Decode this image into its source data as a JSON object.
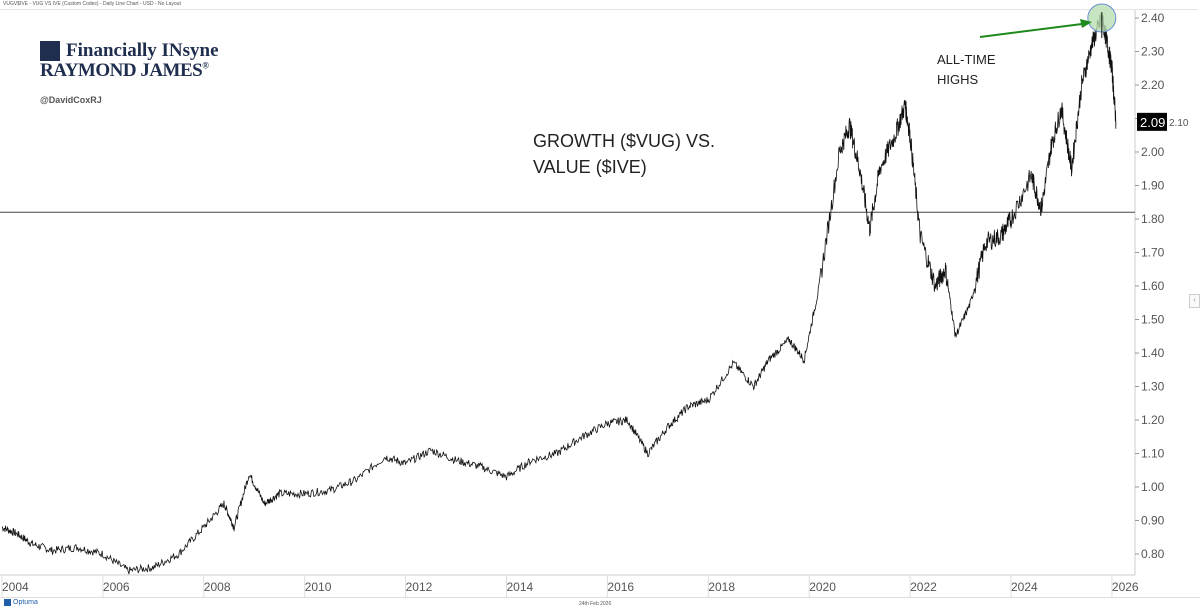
{
  "header": {
    "text": "VUGV$IVE - VUG VS IVE (Custom Codes) - Daily Line Chart - USD - No Layout"
  },
  "branding": {
    "line1": "Financially INsyne",
    "line2": "RAYMOND JAMES",
    "registered": "®",
    "handle": "@DavidCoxRJ"
  },
  "footer": {
    "provider": "Optuma",
    "date": "24th Feb 2026"
  },
  "colors": {
    "line": "#111111",
    "arrow": "#1e8a1e",
    "highlight_fill": "#b9dfb0",
    "highlight_stroke": "#6b8fd6",
    "last_value_bg": "#000000",
    "reference_line": "#444444"
  },
  "chart_data": {
    "type": "line",
    "title": "GROWTH ($VUG) VS. VALUE ($IVE)",
    "annotation": "ALL-TIME HIGHS",
    "xlim": [
      2004,
      2026
    ],
    "ylim": [
      0.75,
      2.42
    ],
    "x_ticks": [
      "2004",
      "2006",
      "2008",
      "2010",
      "2012",
      "2014",
      "2016",
      "2018",
      "2020",
      "2022",
      "2024",
      "2026"
    ],
    "y_ticks": [
      "0.80",
      "0.90",
      "1.00",
      "1.10",
      "1.20",
      "1.30",
      "1.40",
      "1.50",
      "1.60",
      "1.70",
      "1.80",
      "1.90",
      "2.00",
      "2.10",
      "2.20",
      "2.30",
      "2.40"
    ],
    "y_axis_side": "right",
    "grid": false,
    "last_value": "2.09",
    "reference_line": 1.82,
    "series": [
      {
        "x": [
          2004.0,
          2004.3,
          2004.6,
          2005.0,
          2005.5,
          2006.0,
          2006.5,
          2007.0,
          2007.5,
          2008.0,
          2008.4,
          2008.6,
          2008.9,
          2009.2,
          2009.5,
          2010.0,
          2010.5,
          2011.0,
          2011.6,
          2012.0,
          2012.5,
          2013.0,
          2013.5,
          2014.0,
          2014.5,
          2015.0,
          2015.5,
          2016.0,
          2016.4,
          2016.8,
          2017.2,
          2017.6,
          2018.0,
          2018.5,
          2018.9,
          2019.2,
          2019.6,
          2019.9,
          2020.2,
          2020.6,
          2020.8,
          2021.0,
          2021.2,
          2021.4,
          2021.7,
          2021.9,
          2022.0,
          2022.2,
          2022.5,
          2022.7,
          2022.9,
          2023.2,
          2023.5,
          2023.8,
          2024.0,
          2024.4,
          2024.6,
          2024.8,
          2025.0,
          2025.2,
          2025.4,
          2025.6,
          2025.8,
          2025.9,
          2026.0,
          2026.08
        ],
        "y": [
          0.88,
          0.86,
          0.83,
          0.81,
          0.82,
          0.8,
          0.75,
          0.76,
          0.8,
          0.88,
          0.95,
          0.88,
          1.04,
          0.95,
          0.98,
          0.98,
          0.99,
          1.02,
          1.09,
          1.07,
          1.11,
          1.08,
          1.06,
          1.03,
          1.08,
          1.1,
          1.15,
          1.19,
          1.2,
          1.1,
          1.18,
          1.24,
          1.26,
          1.37,
          1.3,
          1.38,
          1.44,
          1.38,
          1.6,
          2.0,
          2.08,
          1.95,
          1.77,
          1.95,
          2.05,
          2.14,
          2.05,
          1.75,
          1.6,
          1.65,
          1.45,
          1.55,
          1.73,
          1.75,
          1.8,
          1.93,
          1.83,
          2.02,
          2.13,
          1.95,
          2.2,
          2.32,
          2.4,
          2.33,
          2.25,
          2.09
        ]
      }
    ]
  }
}
